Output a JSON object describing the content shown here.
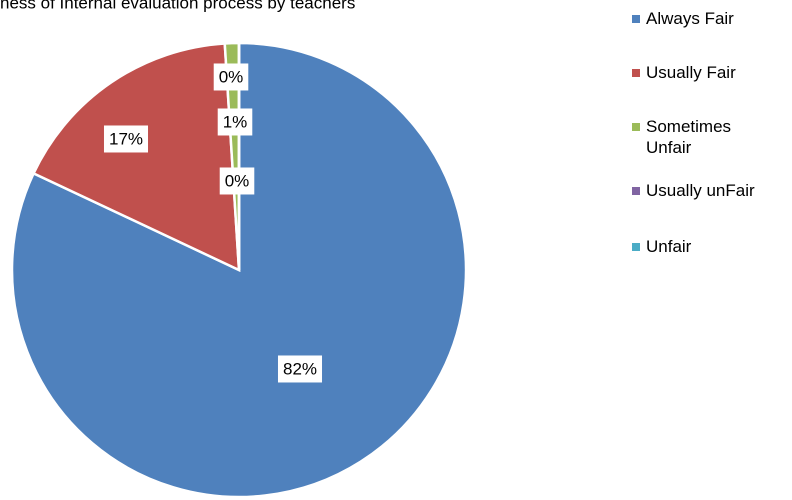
{
  "chart_data": {
    "type": "pie",
    "title": "ness of Internal evaluation process by teachers",
    "categories": [
      "Always Fair",
      "Usually Fair",
      "Sometimes Unfair",
      "Usually unFair",
      "Unfair"
    ],
    "values": [
      82,
      17,
      1,
      0,
      0
    ],
    "value_labels": [
      "82%",
      "17%",
      "1%",
      "0%",
      "0%"
    ],
    "colors": [
      "#4f81bd",
      "#c0504d",
      "#9bbb59",
      "#8064a2",
      "#4bacc6"
    ],
    "legend": "right"
  }
}
